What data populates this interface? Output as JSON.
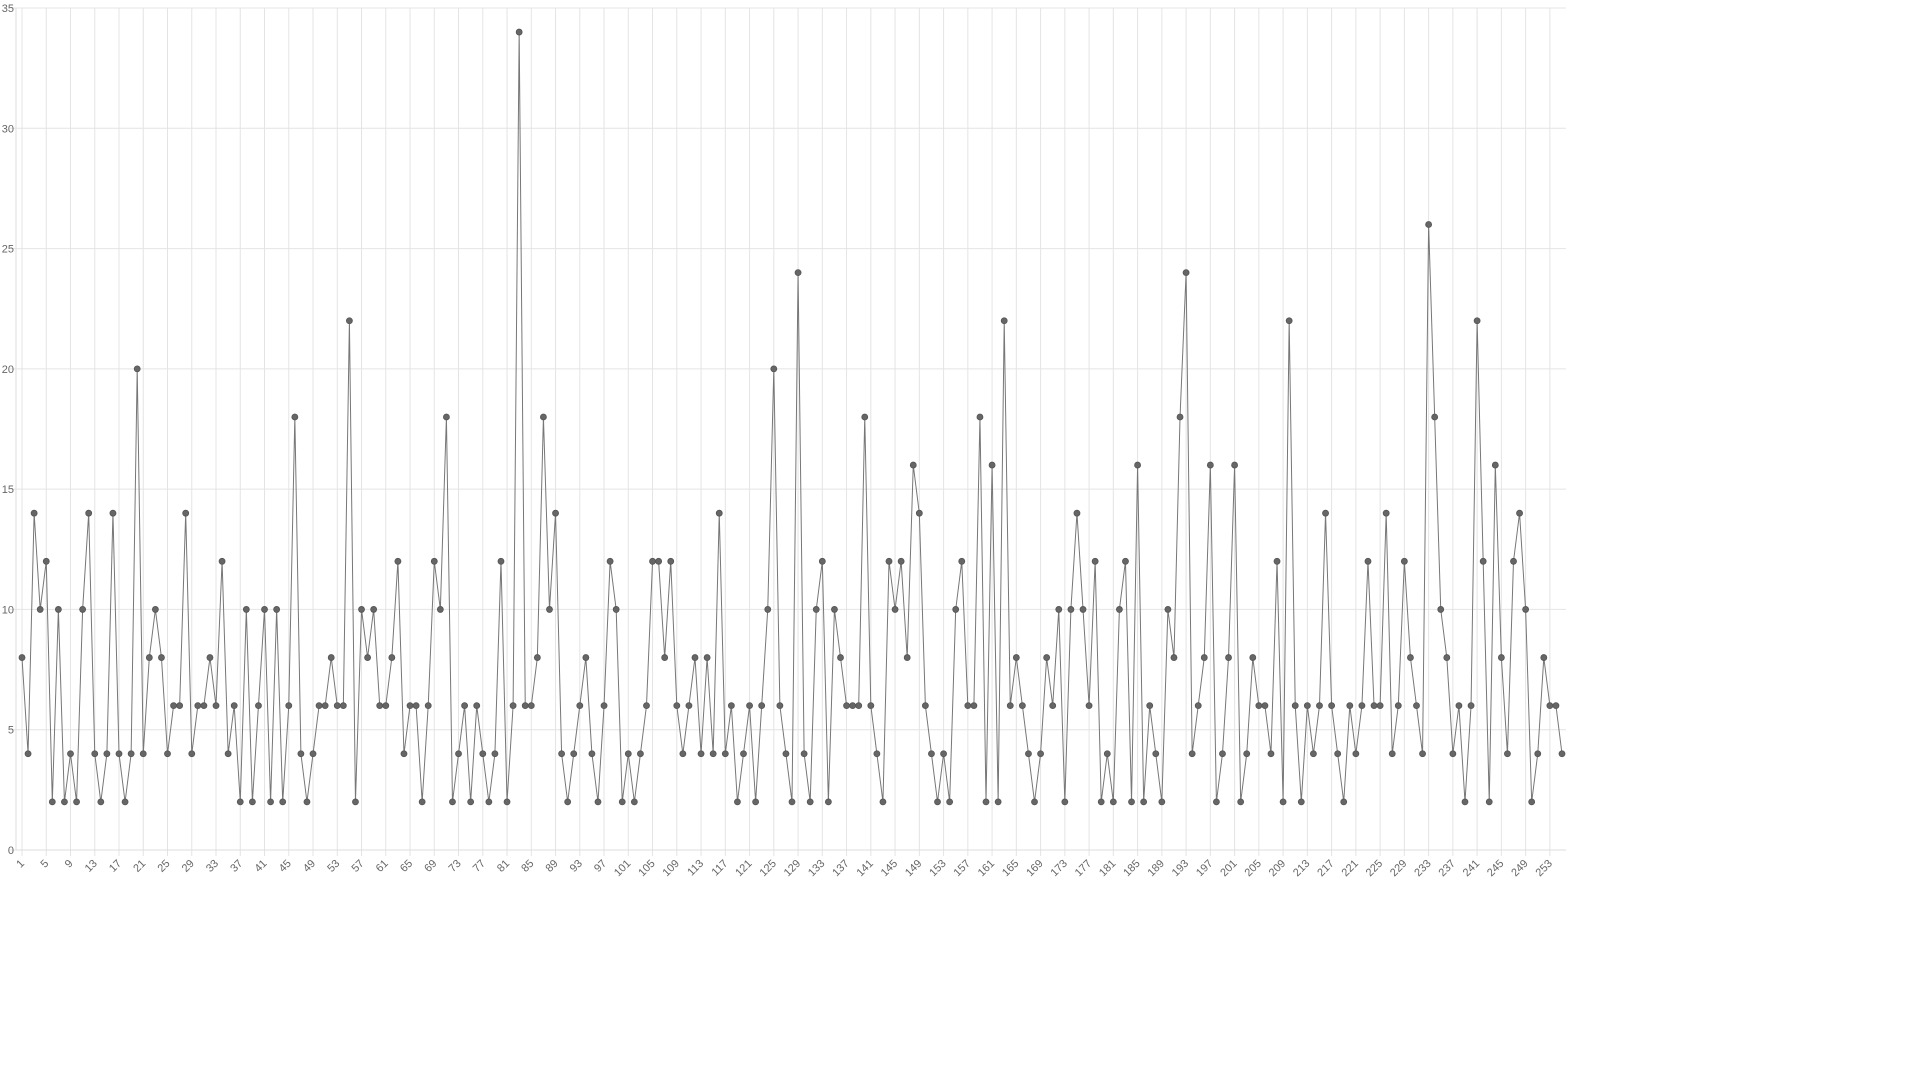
{
  "chart_data": {
    "type": "line",
    "color": "#777777",
    "grid": true,
    "x": [
      1,
      2,
      3,
      4,
      5,
      6,
      7,
      8,
      9,
      10,
      11,
      12,
      13,
      14,
      15,
      16,
      17,
      18,
      19,
      20,
      21,
      22,
      23,
      24,
      25,
      26,
      27,
      28,
      29,
      30,
      31,
      32,
      33,
      34,
      35,
      36,
      37,
      38,
      39,
      40,
      41,
      42,
      43,
      44,
      45,
      46,
      47,
      48,
      49,
      50,
      51,
      52,
      53,
      54,
      55,
      56,
      57,
      58,
      59,
      60,
      61,
      62,
      63,
      64,
      65,
      66,
      67,
      68,
      69,
      70,
      71,
      72,
      73,
      74,
      75,
      76,
      77,
      78,
      79,
      80,
      81,
      82,
      83,
      84,
      85,
      86,
      87,
      88,
      89,
      90,
      91,
      92,
      93,
      94,
      95,
      96,
      97,
      98,
      99,
      100,
      101,
      102,
      103,
      104,
      105,
      106,
      107,
      108,
      109,
      110,
      111,
      112,
      113,
      114,
      115,
      116,
      117,
      118,
      119,
      120,
      121,
      122,
      123,
      124,
      125,
      126,
      127,
      128,
      129,
      130,
      131,
      132,
      133,
      134,
      135,
      136,
      137,
      138,
      139,
      140,
      141,
      142,
      143,
      144,
      145,
      146,
      147,
      148,
      149,
      150,
      151,
      152,
      153,
      154,
      155,
      156,
      157,
      158,
      159,
      160,
      161,
      162,
      163,
      164,
      165,
      166,
      167,
      168,
      169,
      170,
      171,
      172,
      173,
      174,
      175,
      176,
      177,
      178,
      179,
      180,
      181,
      182,
      183,
      184,
      185,
      186,
      187,
      188,
      189,
      190,
      191,
      192,
      193,
      194,
      195,
      196,
      197,
      198,
      199,
      200,
      201,
      202,
      203,
      204,
      205,
      206,
      207,
      208,
      209,
      210,
      211,
      212,
      213,
      214,
      215,
      216,
      217,
      218,
      219,
      220,
      221,
      222,
      223,
      224,
      225,
      226,
      227,
      228,
      229,
      230,
      231,
      232,
      233,
      234,
      235,
      236,
      237,
      238,
      239,
      240,
      241,
      242,
      243,
      244,
      245,
      246,
      247,
      248,
      249,
      250,
      251,
      252,
      253,
      254,
      255
    ],
    "values": [
      8,
      4,
      14,
      10,
      12,
      2,
      10,
      2,
      4,
      2,
      10,
      14,
      4,
      2,
      4,
      14,
      4,
      2,
      4,
      20,
      4,
      8,
      10,
      8,
      4,
      6,
      6,
      14,
      4,
      6,
      6,
      8,
      6,
      12,
      4,
      6,
      2,
      10,
      2,
      6,
      10,
      2,
      10,
      2,
      6,
      18,
      4,
      2,
      4,
      6,
      6,
      8,
      6,
      6,
      22,
      2,
      10,
      8,
      10,
      6,
      6,
      8,
      12,
      4,
      6,
      6,
      2,
      6,
      12,
      10,
      18,
      2,
      4,
      6,
      2,
      6,
      4,
      2,
      4,
      12,
      2,
      6,
      34,
      6,
      6,
      8,
      18,
      10,
      14,
      4,
      2,
      4,
      6,
      8,
      4,
      2,
      6,
      12,
      10,
      2,
      4,
      2,
      4,
      6,
      12,
      12,
      8,
      12,
      6,
      4,
      6,
      8,
      4,
      8,
      4,
      14,
      4,
      6,
      2,
      4,
      6,
      2,
      6,
      10,
      20,
      6,
      4,
      2,
      24,
      4,
      2,
      10,
      12,
      2,
      10,
      8,
      6,
      6,
      6,
      18,
      6,
      4,
      2,
      12,
      10,
      12,
      8,
      16,
      14,
      6,
      4,
      2,
      4,
      2,
      10,
      12,
      6,
      6,
      18,
      2,
      16,
      2,
      22,
      6,
      8,
      6,
      4,
      2,
      4,
      8,
      6,
      10,
      2,
      10,
      14,
      10,
      6,
      12,
      2,
      4,
      2,
      10,
      12,
      2,
      16,
      2,
      6,
      4,
      2,
      10,
      8,
      18,
      24,
      4,
      6,
      8,
      16,
      2,
      4,
      8,
      16,
      2,
      4,
      8,
      6,
      6,
      4,
      12,
      2,
      22,
      6,
      2,
      6,
      4,
      6,
      14,
      6,
      4,
      2,
      6,
      4,
      6,
      12,
      6,
      6,
      14,
      4,
      6,
      12,
      8,
      6,
      4,
      26,
      18,
      10,
      8,
      4,
      6,
      2,
      6,
      22,
      12,
      2,
      16,
      8,
      4,
      12,
      14,
      10,
      2,
      4,
      8,
      6,
      6,
      4
    ],
    "xlim": [
      1,
      255
    ],
    "xticks": [
      1,
      5,
      9,
      13,
      17,
      21,
      25,
      29,
      33,
      37,
      41,
      45,
      49,
      53,
      57,
      61,
      65,
      69,
      73,
      77,
      81,
      85,
      89,
      93,
      97,
      101,
      105,
      109,
      113,
      117,
      121,
      125,
      129,
      133,
      137,
      141,
      145,
      149,
      153,
      157,
      161,
      165,
      169,
      173,
      177,
      181,
      185,
      189,
      193,
      197,
      201,
      205,
      209,
      213,
      217,
      221,
      225,
      229,
      233,
      237,
      241,
      245,
      249,
      253
    ],
    "ylim": [
      0,
      35
    ],
    "yticks": [
      0,
      5,
      10,
      15,
      20,
      25,
      30,
      35
    ]
  }
}
